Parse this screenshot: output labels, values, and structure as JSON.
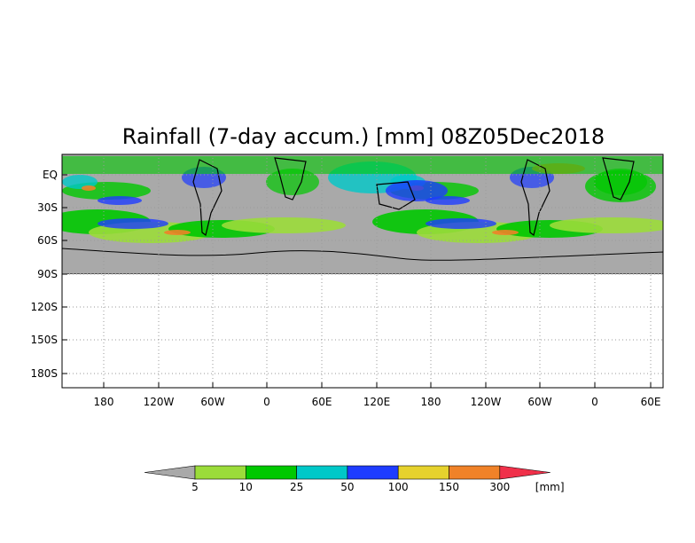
{
  "title": "Rainfall (7-day accum.) [mm] 08Z05Dec2018",
  "map": {
    "lat_labels": [
      "EQ",
      "30S",
      "60S",
      "90S",
      "120S",
      "150S",
      "180S"
    ],
    "lon_labels": [
      "180",
      "120W",
      "60W",
      "0",
      "60E",
      "120E",
      "180",
      "120W",
      "60W",
      "0",
      "60E"
    ],
    "land_color": "#a9a9a9",
    "grid": "dotted"
  },
  "legend": {
    "unit": "[mm]",
    "bins": [
      {
        "label": "5",
        "color": "#9bdc3a"
      },
      {
        "label": "10",
        "color": "#00c800"
      },
      {
        "label": "25",
        "color": "#00c8c8"
      },
      {
        "label": "50",
        "color": "#1e3cff"
      },
      {
        "label": "100",
        "color": "#e6d22d"
      },
      {
        "label": "150",
        "color": "#f08228"
      },
      {
        "label": "300",
        "color": ""
      }
    ],
    "under_color": "#a9a9a9",
    "over_color": "#f0304a"
  }
}
